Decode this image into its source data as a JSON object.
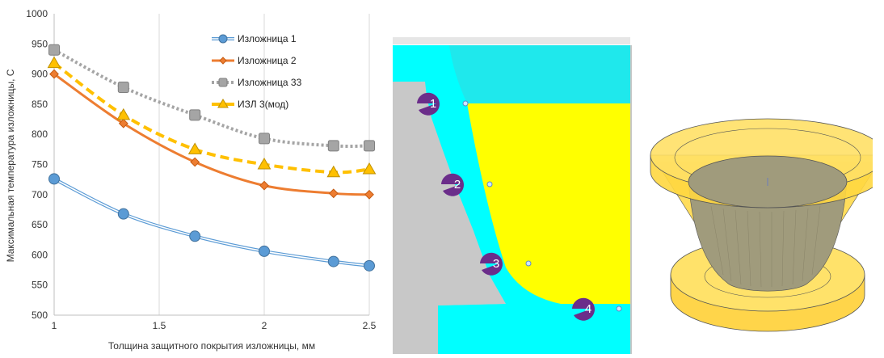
{
  "chart_data": {
    "type": "line",
    "title": "",
    "xlabel": "Толщина защитного покрытия изложницы, мм",
    "ylabel": "Максимальная температура изложницы, С",
    "xlim": [
      1,
      2.5
    ],
    "ylim": [
      500,
      1000
    ],
    "xticks": [
      "1",
      "1.5",
      "2",
      "2.5"
    ],
    "yticks": [
      "500",
      "550",
      "600",
      "650",
      "700",
      "750",
      "800",
      "850",
      "900",
      "950",
      "1000"
    ],
    "grid": "vertical",
    "legend_position": "top-right",
    "series": [
      {
        "name": "Изложница 1",
        "color": "#5b9bd5",
        "marker": "circle",
        "line": "double",
        "x": [
          1,
          1.33,
          1.67,
          2,
          2.33,
          2.5
        ],
        "y": [
          726,
          668,
          631,
          606,
          589,
          582
        ]
      },
      {
        "name": "Изложница 2",
        "color": "#ed7d31",
        "marker": "diamond",
        "line": "solid",
        "x": [
          1,
          1.33,
          1.67,
          2,
          2.33,
          2.5
        ],
        "y": [
          900,
          818,
          754,
          715,
          702,
          700
        ]
      },
      {
        "name": "Изложница 33",
        "color": "#a5a5a5",
        "marker": "square",
        "line": "dotted",
        "x": [
          1,
          1.33,
          1.67,
          2,
          2.33,
          2.5
        ],
        "y": [
          940,
          878,
          832,
          793,
          781,
          781
        ]
      },
      {
        "name": "ИЗЛ 3(мод)",
        "color": "#ffc000",
        "marker": "triangle",
        "line": "dashed",
        "x": [
          1,
          1.33,
          1.67,
          2,
          2.33,
          2.5
        ],
        "y": [
          918,
          832,
          775,
          750,
          737,
          742
        ]
      }
    ]
  },
  "section_image": {
    "points": [
      "1",
      "2",
      "3",
      "4"
    ],
    "colors": {
      "mold": "#00ffff",
      "casting": "#ffff00",
      "background": "#c8c8c8",
      "marker": "#6b2d8a"
    }
  },
  "model_image": {
    "colors": {
      "mold": "#ffd740",
      "casting": "#9e9a7e",
      "outline": "#3a3a3a"
    }
  }
}
